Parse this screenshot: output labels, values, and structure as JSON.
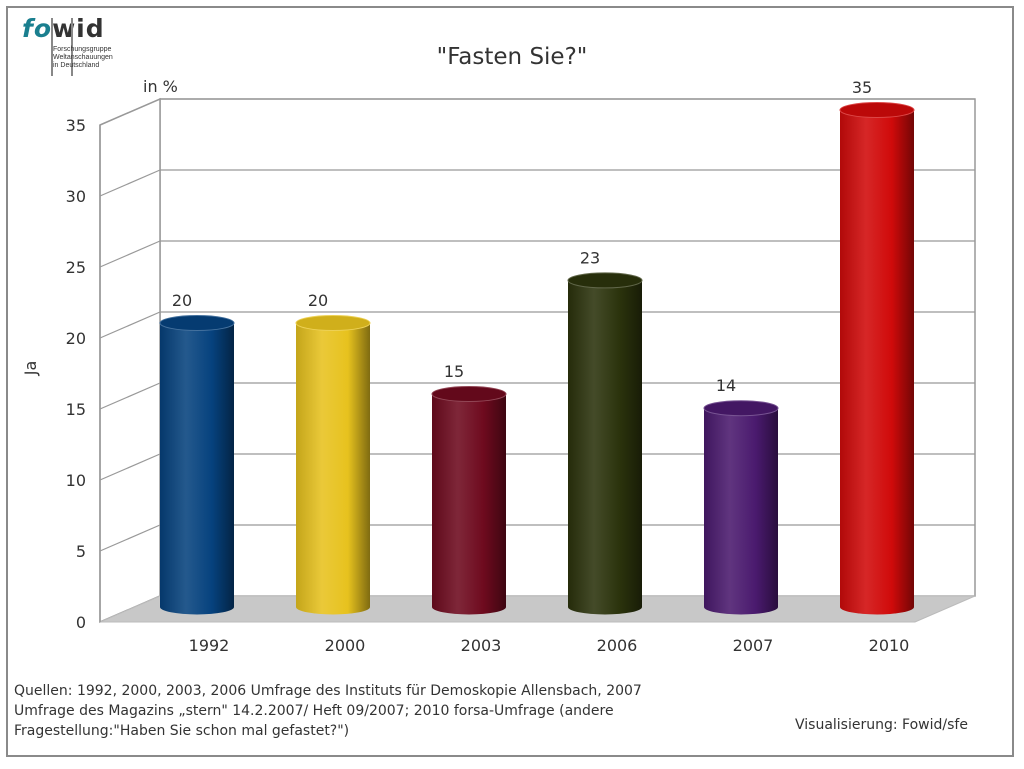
{
  "logo": {
    "part1": "fo",
    "part2": "wid",
    "sub": [
      "Forschungsgruppe",
      "Weltanschauungen",
      "in Deutschland"
    ]
  },
  "chart_data": {
    "type": "bar",
    "title": "\"Fasten Sie?\"",
    "unit_label": "in %",
    "ylabel": "Ja",
    "xlabel": "",
    "categories": [
      "1992",
      "2000",
      "2003",
      "2006",
      "2007",
      "2010"
    ],
    "values": [
      20,
      20,
      15,
      23,
      14,
      35
    ],
    "data_labels": [
      "20",
      "20",
      "15",
      "23",
      "14",
      "35"
    ],
    "colors": [
      "#06427e",
      "#e7c21e",
      "#6e0a1e",
      "#2b330c",
      "#4a1a6e",
      "#d00a0a"
    ],
    "ylim": [
      0,
      35
    ],
    "yticks": [
      0,
      5,
      10,
      15,
      20,
      25,
      30,
      35
    ],
    "grid": true,
    "legend": "none"
  },
  "footer": {
    "source": "Quellen: 1992, 2000, 2003, 2006 Umfrage des Instituts für Demoskopie Allensbach, 2007 Umfrage des Magazins „stern\" 14.2.2007/ Heft 09/2007; 2010 forsa-Umfrage (andere Fragestellung:\"Haben Sie schon mal gefastet?\")",
    "credit": "Visualisierung: Fowid/sfe"
  }
}
